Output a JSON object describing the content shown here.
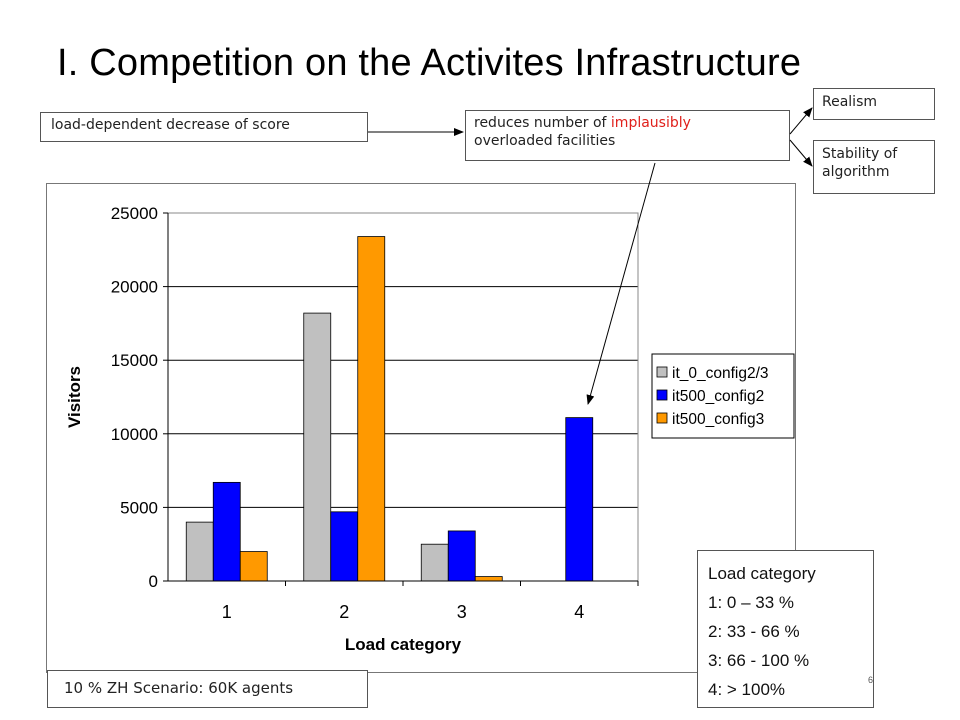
{
  "slide": {
    "title": "I. Competition on the Activites Infrastructure",
    "load_box": "load-dependent  decrease of score",
    "reduces_box": {
      "part1": "reduces number of ",
      "highlight": "implausibly",
      "part2": "overloaded  facilities"
    },
    "realism_box": "Realism",
    "stability_box": "Stability of algorithm",
    "scenario_box": "10 % ZH Scenario: 60K agents",
    "load_category": {
      "heading": "Load category",
      "items": [
        "1: 0  – 33 %",
        "2: 33 - 66 %",
        "3: 66 - 100 %",
        "4: > 100%"
      ]
    },
    "page_number": "6",
    "highlight_color": "#e0201b"
  },
  "chart_data": {
    "type": "bar",
    "categories": [
      "1",
      "2",
      "3",
      "4"
    ],
    "series": [
      {
        "name": "it_0_config2/3",
        "color": "#c0c0c0",
        "values": [
          4000,
          18200,
          2500,
          0
        ]
      },
      {
        "name": "it500_config2",
        "color": "#0000ff",
        "values": [
          6700,
          4700,
          3400,
          11100
        ]
      },
      {
        "name": "it500_config3",
        "color": "#ff9900",
        "values": [
          2000,
          23400,
          300,
          0
        ]
      }
    ],
    "xlabel": "Load category",
    "ylabel": "Visitors",
    "ylim": [
      0,
      25000
    ],
    "yticks": [
      0,
      5000,
      10000,
      15000,
      20000,
      25000
    ],
    "grid": true,
    "legend_position": "right"
  }
}
